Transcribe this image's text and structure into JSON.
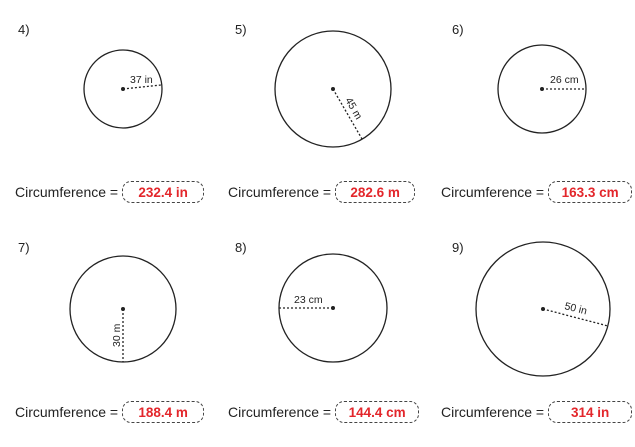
{
  "label_text": "Circumference =",
  "problems": [
    {
      "number": "4)",
      "radius_label": "37 in",
      "answer": "232.4 in"
    },
    {
      "number": "5)",
      "radius_label": "45 m",
      "answer": "282.6 m"
    },
    {
      "number": "6)",
      "radius_label": "26 cm",
      "answer": "163.3 cm"
    },
    {
      "number": "7)",
      "radius_label": "30 m",
      "answer": "188.4 m"
    },
    {
      "number": "8)",
      "radius_label": "23 cm",
      "answer": "144.4 cm"
    },
    {
      "number": "9)",
      "radius_label": "50 in",
      "answer": "314 in"
    }
  ],
  "colors": {
    "answer_text": "#e3262b",
    "stroke": "#222222"
  }
}
